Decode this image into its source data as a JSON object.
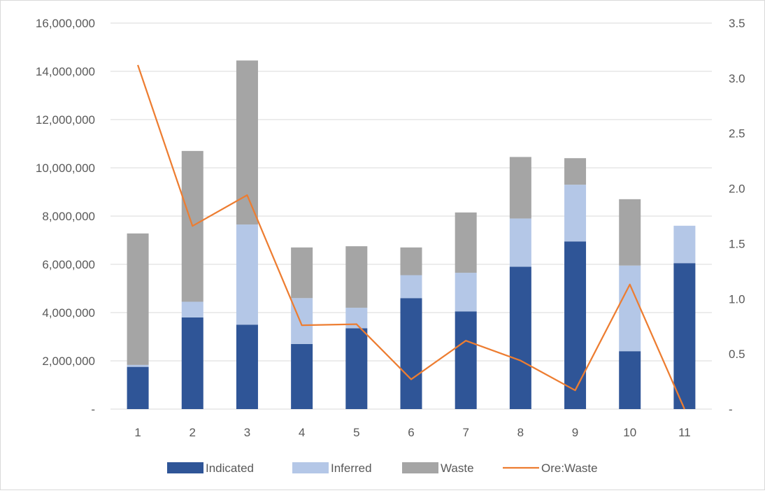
{
  "chart_data": {
    "type": "bar",
    "stacked": true,
    "title": "",
    "categories": [
      "1",
      "2",
      "3",
      "4",
      "5",
      "6",
      "7",
      "8",
      "9",
      "10",
      "11"
    ],
    "series": [
      {
        "name": "Indicated",
        "type": "bar",
        "axis": "left",
        "color": "#2f5597",
        "values": [
          1750000,
          3800000,
          3500000,
          2700000,
          3350000,
          4600000,
          4050000,
          5900000,
          6950000,
          2400000,
          6050000
        ]
      },
      {
        "name": "Inferred",
        "type": "bar",
        "axis": "left",
        "color": "#b4c7e7",
        "values": [
          80000,
          650000,
          4150000,
          1900000,
          850000,
          950000,
          1600000,
          2000000,
          2350000,
          3550000,
          1550000
        ]
      },
      {
        "name": "Waste",
        "type": "bar",
        "axis": "left",
        "color": "#a5a5a5",
        "values": [
          5450000,
          6250000,
          6800000,
          2100000,
          2550000,
          1150000,
          2500000,
          2550000,
          1100000,
          2750000,
          0
        ]
      },
      {
        "name": "Ore:Waste",
        "type": "line",
        "axis": "right",
        "color": "#ed7d31",
        "values": [
          3.12,
          1.66,
          1.94,
          0.76,
          0.77,
          0.27,
          0.62,
          0.44,
          0.17,
          1.13,
          0
        ]
      }
    ],
    "y_left": {
      "min": 0,
      "max": 16000000,
      "step": 2000000,
      "tick_labels": [
        "-",
        "2,000,000",
        "4,000,000",
        "6,000,000",
        "8,000,000",
        "10,000,000",
        "12,000,000",
        "14,000,000",
        "16,000,000"
      ]
    },
    "y_right": {
      "min": 0,
      "max": 3.5,
      "step": 0.5,
      "tick_labels": [
        "-",
        "0.5",
        "1.0",
        "1.5",
        "2.0",
        "2.5",
        "3.0",
        "3.5"
      ]
    },
    "grid": true,
    "legend": "bottom"
  }
}
